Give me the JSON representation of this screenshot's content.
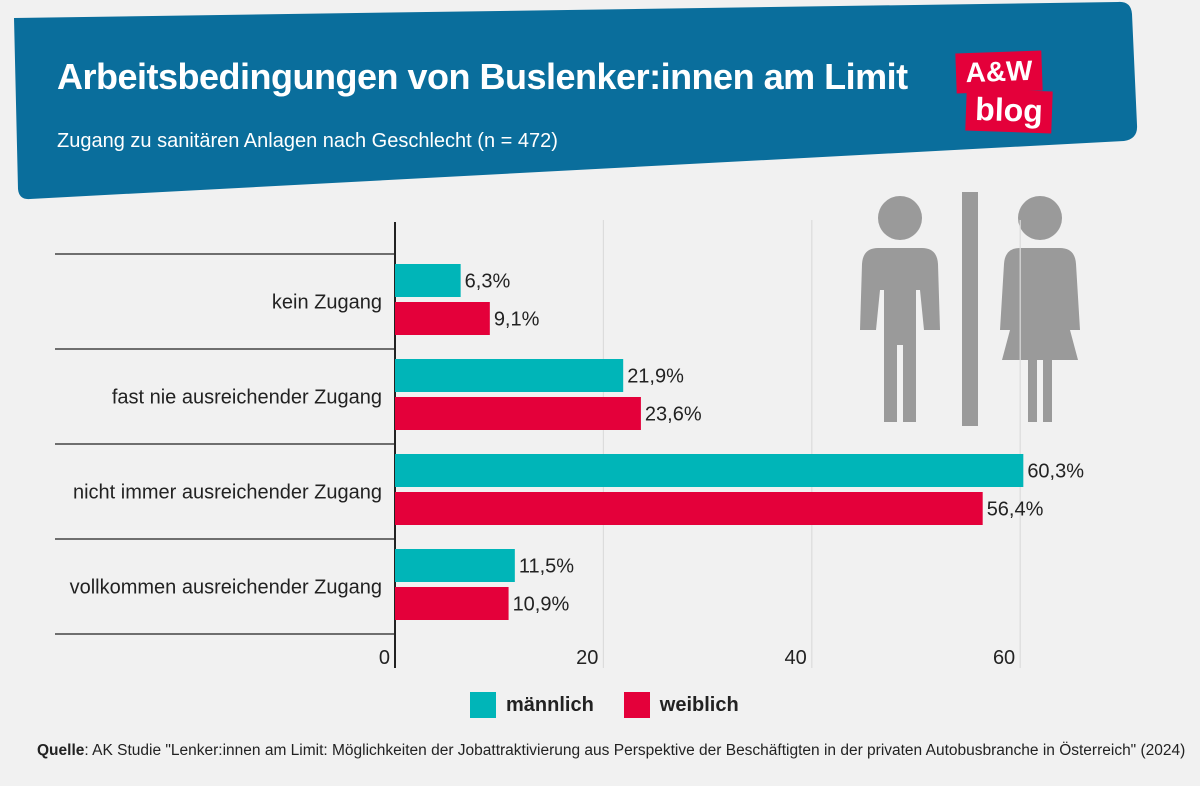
{
  "header": {
    "title": "Arbeitsbedingungen von Buslenker:innen am Limit",
    "subtitle": "Zugang zu sanitären Anlagen nach Geschlecht (n = 472)"
  },
  "logo": {
    "line1": "A&W",
    "line2": "blog"
  },
  "colors": {
    "banner": "#0a6e9c",
    "maennlich": "#00b5b8",
    "weiblich": "#e4003a",
    "icon": "#9a9a9a",
    "logo": "#e4003a"
  },
  "icons": [
    "male-figure-icon",
    "female-figure-icon",
    "divider-bar-icon"
  ],
  "chart_data": {
    "type": "bar",
    "orientation": "horizontal",
    "title": "Zugang zu sanitären Anlagen nach Geschlecht (n = 472)",
    "categories": [
      "kein Zugang",
      "fast nie ausreichender Zugang",
      "nicht immer ausreichender Zugang",
      "vollkommen ausreichender Zugang"
    ],
    "series": [
      {
        "name": "männlich",
        "values": [
          6.3,
          21.9,
          60.3,
          11.5
        ],
        "labels": [
          "6,3%",
          "21,9%",
          "60,3%",
          "11,5%"
        ]
      },
      {
        "name": "weiblich",
        "values": [
          9.1,
          23.6,
          56.4,
          10.9
        ],
        "labels": [
          "9,1%",
          "23,6%",
          "56,4%",
          "10,9%"
        ]
      }
    ],
    "xlim": [
      0,
      70
    ],
    "xticks": [
      0,
      20,
      40,
      60
    ],
    "xtick_labels": [
      "0",
      "20",
      "40",
      "60"
    ],
    "grid": true,
    "legend": "bottom-center"
  },
  "legend": {
    "items": [
      "männlich",
      "weiblich"
    ]
  },
  "source": {
    "label": "Quelle",
    "text": ": AK Studie \"Lenker:innen am Limit: Möglichkeiten der Jobattraktivierung aus Perspektive der Beschäftigten in der privaten Autobusbranche in Österreich\" (2024)"
  }
}
